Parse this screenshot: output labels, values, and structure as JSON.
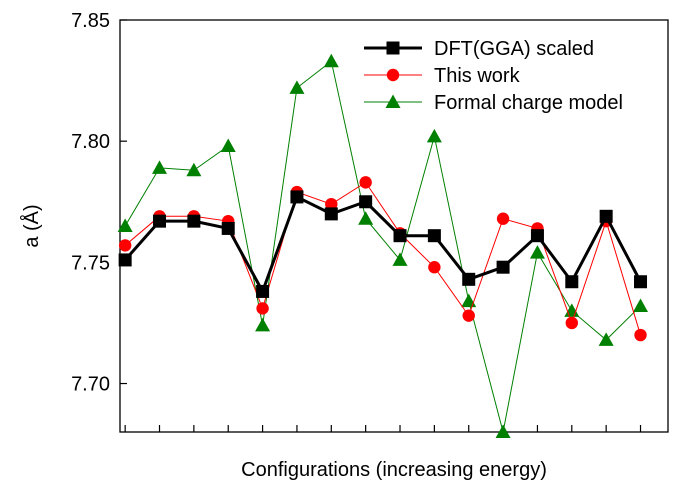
{
  "chart_data": {
    "type": "line",
    "title": "",
    "xlabel": "Configurations (increasing energy)",
    "ylabel": "a (Å)",
    "ylim": [
      7.68,
      7.85
    ],
    "yticks": [
      "7.70",
      "7.75",
      "7.80",
      "7.85"
    ],
    "x": [
      1,
      2,
      3,
      4,
      5,
      6,
      7,
      8,
      9,
      10,
      11,
      12,
      13,
      14,
      15,
      16
    ],
    "xlim": [
      0.85,
      16.8
    ],
    "grid": false,
    "legend_position": "top-right",
    "series": [
      {
        "name": "DFT(GGA) scaled",
        "color": "#000000",
        "marker": "square",
        "values": [
          7.751,
          7.767,
          7.767,
          7.764,
          7.738,
          7.777,
          7.77,
          7.775,
          7.761,
          7.761,
          7.743,
          7.748,
          7.761,
          7.742,
          7.769,
          7.742
        ]
      },
      {
        "name": "This work",
        "color": "#ff0000",
        "marker": "circle",
        "values": [
          7.757,
          7.769,
          7.769,
          7.767,
          7.731,
          7.779,
          7.774,
          7.783,
          7.762,
          7.748,
          7.728,
          7.768,
          7.764,
          7.725,
          7.767,
          7.72
        ]
      },
      {
        "name": "Formal charge model",
        "color": "#008000",
        "marker": "triangle",
        "values": [
          7.765,
          7.789,
          7.788,
          7.798,
          7.724,
          7.822,
          7.833,
          7.768,
          7.751,
          7.802,
          7.734,
          7.68,
          7.754,
          7.73,
          7.718,
          7.732
        ]
      }
    ]
  }
}
